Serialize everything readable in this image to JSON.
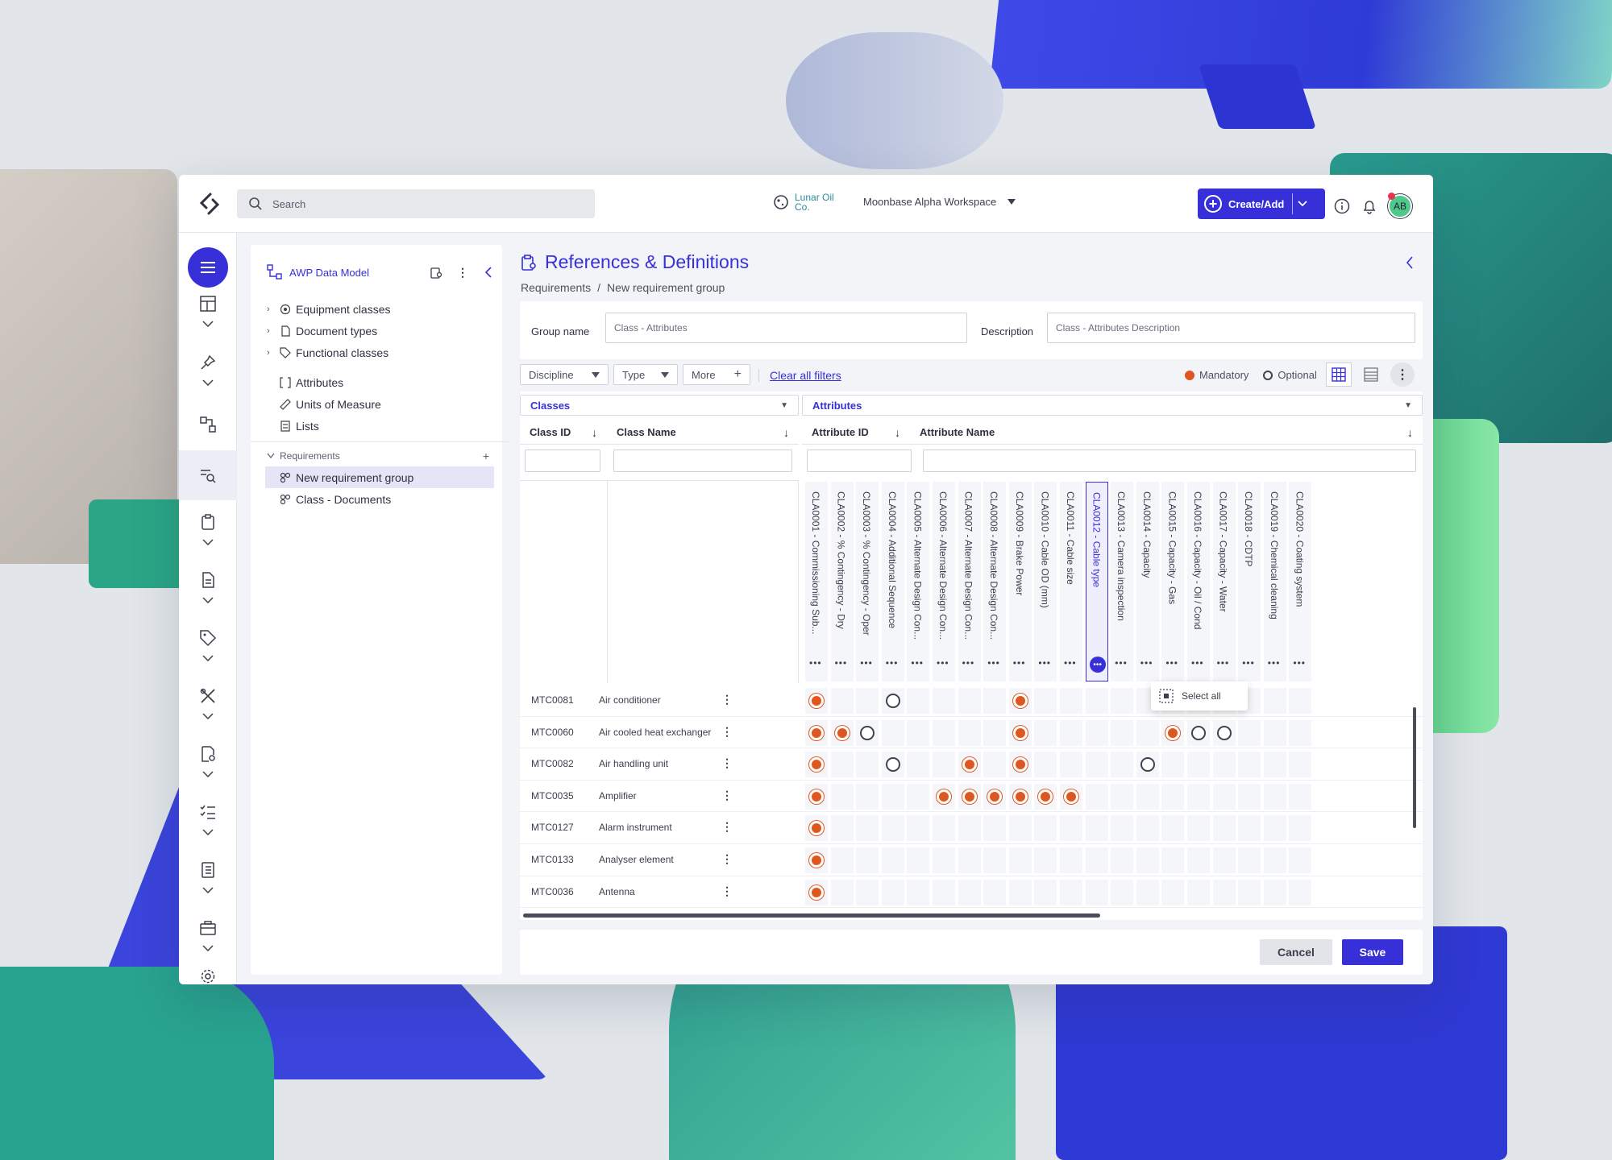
{
  "header": {
    "search_placeholder": "Search",
    "company_name": "Lunar Oil Co.",
    "workspace": "Moonbase Alpha Workspace",
    "create_label": "Create/Add",
    "avatar_initials": "AB"
  },
  "tree": {
    "title": "AWP Data Model",
    "items": [
      {
        "label": "Equipment classes"
      },
      {
        "label": "Document types"
      },
      {
        "label": "Functional classes"
      }
    ],
    "plain_items": [
      {
        "label": "Attributes"
      },
      {
        "label": "Units of Measure"
      },
      {
        "label": "Lists"
      }
    ],
    "section": "Requirements",
    "groups": [
      {
        "label": "New requirement group"
      },
      {
        "label": "Class - Documents"
      }
    ]
  },
  "main": {
    "title": "References & Definitions",
    "breadcrumb": [
      "Requirements",
      "New requirement group"
    ],
    "group_name_label": "Group name",
    "group_name_value": "Class - Attributes",
    "description_label": "Description",
    "description_value": "Class - Attributes Description",
    "filters": {
      "discipline": "Discipline",
      "type": "Type",
      "more": "More",
      "clear": "Clear all filters"
    },
    "legend": {
      "mandatory": "Mandatory",
      "optional": "Optional"
    },
    "classes_header": "Classes",
    "attributes_header": "Attributes",
    "columns": {
      "class_id": "Class ID",
      "class_name": "Class Name",
      "attribute_id": "Attribute ID",
      "attribute_name": "Attribute Name"
    },
    "attributes": [
      "CLA0001 - Commissioning Sub...",
      "CLA0002 - % Contingency - Dry",
      "CLA0003 - % Contingency - Oper",
      "CLA0004 - Additional Sequence",
      "CLA0005 - Alternate Design Con...",
      "CLA0006 - Alternate Design Con...",
      "CLA0007 - Alternate Design Con...",
      "CLA0008 - Alternate Design Con...",
      "CLA0009 - Brake Power",
      "CLA0010 - Cable OD (mm)",
      "CLA0011 - Cable size",
      "CLA0012 - Cable type",
      "CLA0013 - Camera inspection",
      "CLA0014 - Capacity",
      "CLA0015 - Capacity - Gas",
      "CLA0016 - Capacity - Oil / Cond",
      "CLA0017 - Capacity - Water",
      "CLA0018 - CDTP",
      "CLA0019 - Chemical cleaning",
      "CLA0020 - Coating system"
    ],
    "rows": [
      {
        "id": "MTC0081",
        "name": "Air conditioner",
        "cells": [
          "m",
          "",
          "",
          "o",
          "",
          "",
          "",
          "",
          "m",
          "",
          "",
          "",
          "",
          "",
          "",
          "",
          "",
          "",
          "",
          ""
        ]
      },
      {
        "id": "MTC0060",
        "name": "Air cooled heat exchanger",
        "cells": [
          "m",
          "m",
          "o",
          "",
          "",
          "",
          "",
          "",
          "m",
          "",
          "",
          "",
          "",
          "",
          "m",
          "o",
          "o",
          "",
          "",
          ""
        ]
      },
      {
        "id": "MTC0082",
        "name": "Air handling unit",
        "cells": [
          "m",
          "",
          "",
          "o",
          "",
          "",
          "m",
          "",
          "m",
          "",
          "",
          "",
          "",
          "o",
          "",
          "",
          "",
          "",
          "",
          ""
        ]
      },
      {
        "id": "MTC0035",
        "name": "Amplifier",
        "cells": [
          "m",
          "",
          "",
          "",
          "",
          "m",
          "m",
          "m",
          "m",
          "m",
          "m",
          "",
          "",
          "",
          "",
          "",
          "",
          "",
          "",
          ""
        ]
      },
      {
        "id": "MTC0127",
        "name": "Alarm instrument",
        "cells": [
          "m",
          "",
          "",
          "",
          "",
          "",
          "",
          "",
          "",
          "",
          "",
          "",
          "",
          "",
          "",
          "",
          "",
          "",
          "",
          ""
        ]
      },
      {
        "id": "MTC0133",
        "name": "Analyser element",
        "cells": [
          "m",
          "",
          "",
          "",
          "",
          "",
          "",
          "",
          "",
          "",
          "",
          "",
          "",
          "",
          "",
          "",
          "",
          "",
          "",
          ""
        ]
      },
      {
        "id": "MTC0036",
        "name": "Antenna",
        "cells": [
          "m",
          "",
          "",
          "",
          "",
          "",
          "",
          "",
          "",
          "",
          "",
          "",
          "",
          "",
          "",
          "",
          "",
          "",
          "",
          ""
        ]
      }
    ],
    "popup_label": "Select all",
    "cancel_label": "Cancel",
    "save_label": "Save"
  },
  "colors": {
    "accent": "#3730d9",
    "mandatory": "#e0561f"
  }
}
